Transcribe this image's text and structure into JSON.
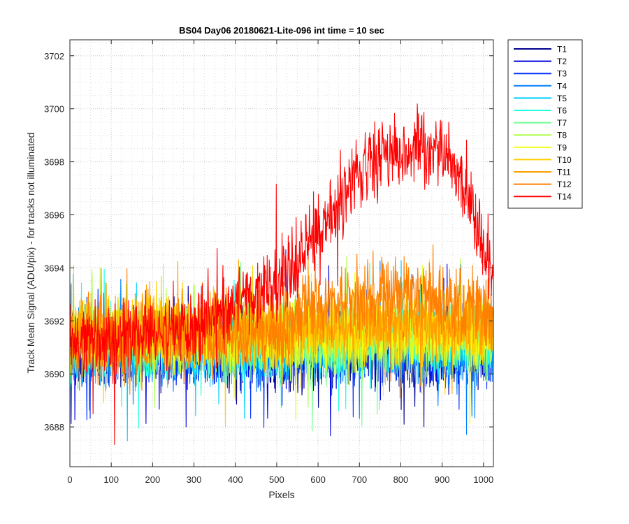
{
  "chart_data": {
    "type": "line",
    "title": "BS04 Day06 20180621-Lite-096 int time = 10 sec",
    "xlabel": "Pixels",
    "ylabel": "Track Mean Signal (ADU/pix) - for tracks not illuminated",
    "xlim": [
      0,
      1024
    ],
    "ylim": [
      3686.5,
      3702.6
    ],
    "xticks": [
      0,
      100,
      200,
      300,
      400,
      500,
      600,
      700,
      800,
      900,
      1000
    ],
    "yticks": [
      3688,
      3690,
      3692,
      3694,
      3696,
      3698,
      3700,
      3702
    ],
    "xtick_labels": [
      "0",
      "100",
      "200",
      "300",
      "400",
      "500",
      "600",
      "700",
      "800",
      "900",
      "1000"
    ],
    "ytick_labels": [
      "3688",
      "3690",
      "3692",
      "3694",
      "3696",
      "3698",
      "3700",
      "3702"
    ],
    "grid": "dotted",
    "legend_position": "outside-top-right",
    "series": [
      {
        "name": "T1",
        "color": "#00008f",
        "baseline": [
          [
            0,
            3690.9
          ],
          [
            1024,
            3690.9
          ]
        ],
        "noise": 1.0
      },
      {
        "name": "T2",
        "color": "#0000df",
        "baseline": [
          [
            0,
            3690.9
          ],
          [
            1024,
            3690.9
          ]
        ],
        "noise": 1.0
      },
      {
        "name": "T3",
        "color": "#0030ff",
        "baseline": [
          [
            0,
            3690.9
          ],
          [
            1024,
            3690.9
          ]
        ],
        "noise": 1.0
      },
      {
        "name": "T4",
        "color": "#0080ff",
        "baseline": [
          [
            0,
            3691.0
          ],
          [
            1024,
            3691.0
          ]
        ],
        "noise": 1.0
      },
      {
        "name": "T5",
        "color": "#00cfff",
        "baseline": [
          [
            0,
            3691.0
          ],
          [
            1024,
            3691.1
          ]
        ],
        "noise": 1.0
      },
      {
        "name": "T6",
        "color": "#20ffdf",
        "baseline": [
          [
            0,
            3691.1
          ],
          [
            1024,
            3691.2
          ]
        ],
        "noise": 1.0
      },
      {
        "name": "T7",
        "color": "#70ff8f",
        "baseline": [
          [
            0,
            3691.2
          ],
          [
            1024,
            3691.3
          ]
        ],
        "noise": 1.0
      },
      {
        "name": "T8",
        "color": "#b0ff50",
        "baseline": [
          [
            0,
            3691.3
          ],
          [
            1024,
            3691.4
          ]
        ],
        "noise": 1.0
      },
      {
        "name": "T9",
        "color": "#efff10",
        "baseline": [
          [
            0,
            3691.4
          ],
          [
            1024,
            3691.5
          ]
        ],
        "noise": 1.0
      },
      {
        "name": "T10",
        "color": "#ffcf00",
        "baseline": [
          [
            0,
            3691.6
          ],
          [
            1024,
            3691.7
          ]
        ],
        "noise": 1.0
      },
      {
        "name": "T11",
        "color": "#ffa000",
        "baseline": [
          [
            0,
            3691.8
          ],
          [
            1024,
            3691.9
          ]
        ],
        "noise": 1.0
      },
      {
        "name": "T12",
        "color": "#ff7f00",
        "baseline": [
          [
            0,
            3691.0
          ],
          [
            300,
            3691.3
          ],
          [
            540,
            3691.6
          ],
          [
            550,
            3692.6
          ],
          [
            800,
            3693.1
          ],
          [
            1000,
            3692.3
          ],
          [
            1024,
            3692.0
          ]
        ],
        "noise": 1.1
      },
      {
        "name": "T14",
        "color": "#ff0000",
        "baseline": [
          [
            0,
            3691.2
          ],
          [
            300,
            3691.8
          ],
          [
            500,
            3693.3
          ],
          [
            600,
            3695.3
          ],
          [
            700,
            3697.6
          ],
          [
            800,
            3698.3
          ],
          [
            900,
            3698.6
          ],
          [
            960,
            3697.0
          ],
          [
            1024,
            3693.5
          ]
        ],
        "noise": 1.1
      }
    ]
  }
}
